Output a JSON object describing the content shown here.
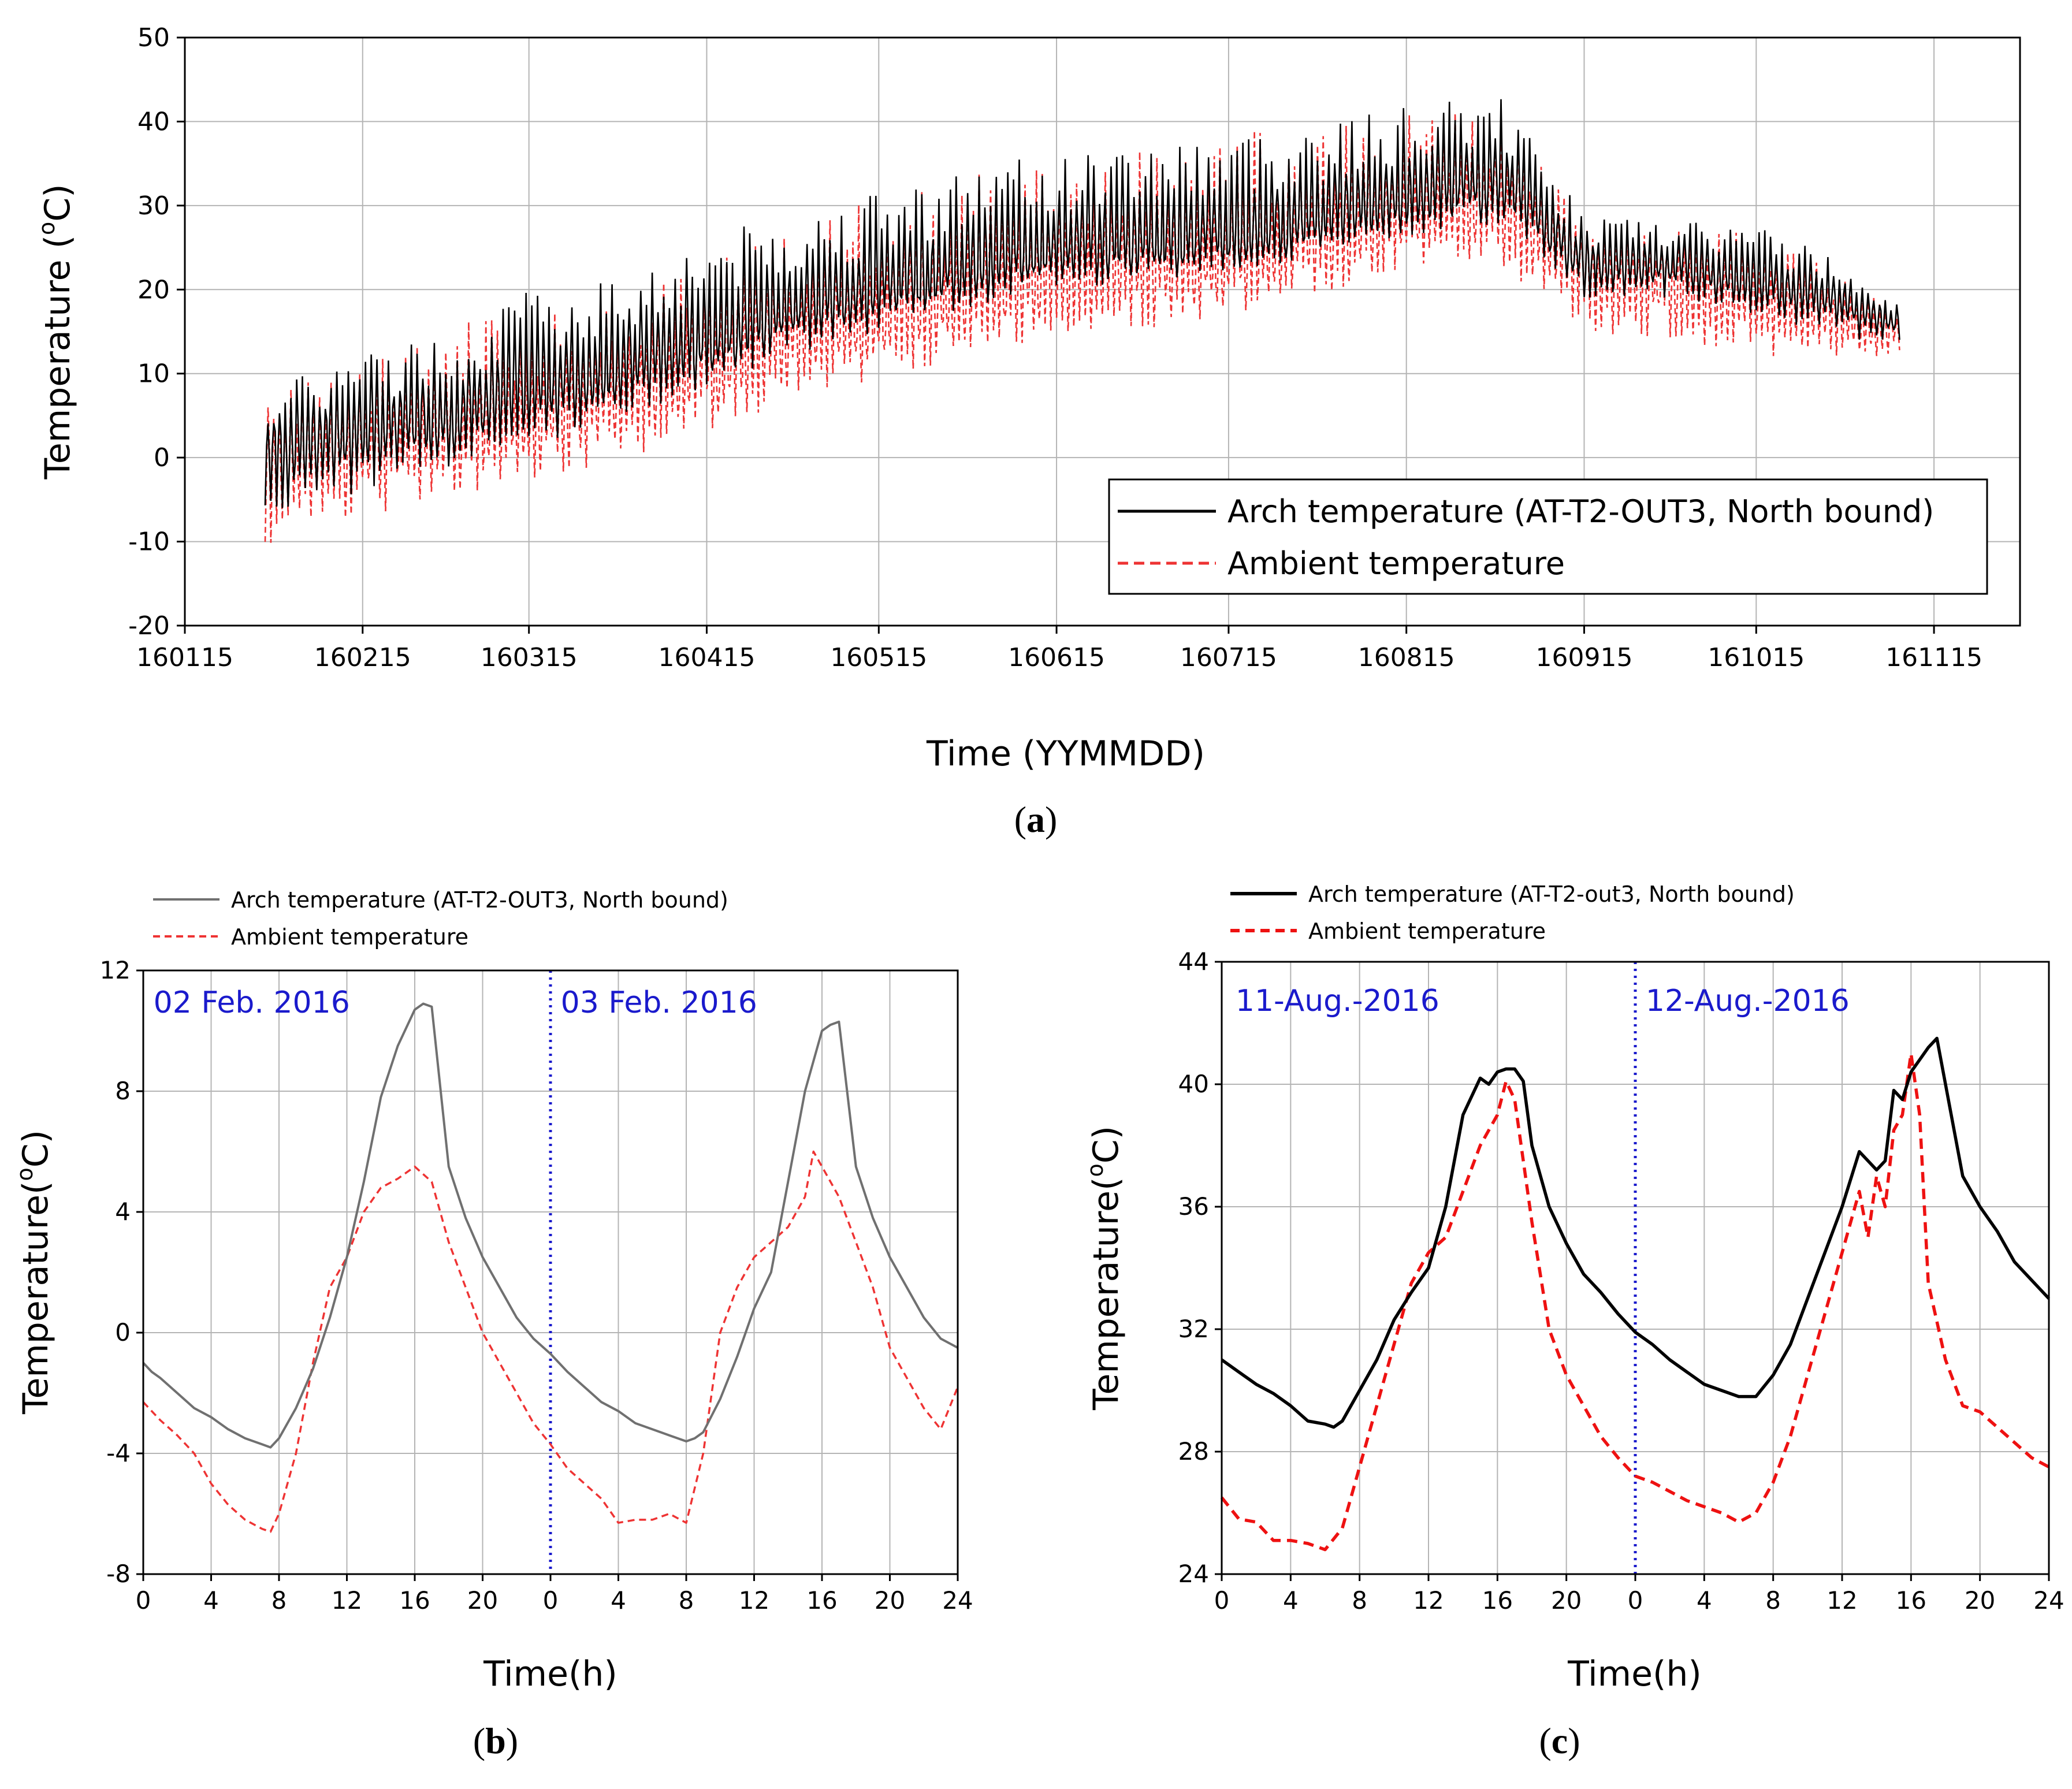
{
  "chart_data": [
    {
      "id": "a",
      "type": "line",
      "panel_label": "a",
      "xlabel": "Time (YYMMDD)",
      "ylabel": "Temperature (°C)",
      "ylabel_parts": [
        "Temperature (",
        "o",
        "C)"
      ],
      "xlim": [
        160115,
        161130
      ],
      "ylim": [
        -20,
        50
      ],
      "x_ticks": [
        "160115",
        "160215",
        "160315",
        "160415",
        "160515",
        "160615",
        "160715",
        "160815",
        "160915",
        "161015",
        "161115"
      ],
      "y_ticks": [
        -20,
        -10,
        0,
        10,
        20,
        30,
        40,
        50
      ],
      "grid": true,
      "legend_position": "bottom-right",
      "series": [
        {
          "name": "Arch temperature (AT-T2-OUT3, North bound)",
          "color": "#000000",
          "style": "solid",
          "x": [
            "160129",
            "160215",
            "160301",
            "160315",
            "160401",
            "160415",
            "160501",
            "160515",
            "160601",
            "160615",
            "160701",
            "160715",
            "160801",
            "160815",
            "160901",
            "160915",
            "161001",
            "161015",
            "161101",
            "161109"
          ],
          "y": [
            1,
            3,
            5,
            8,
            11,
            14,
            18,
            20,
            23,
            25,
            26,
            26,
            29,
            31,
            33,
            23,
            23,
            21,
            18,
            16
          ],
          "daily_swing_max": [
            8,
            13,
            15,
            20,
            22,
            27,
            29,
            32,
            35,
            36,
            38,
            39,
            40,
            42,
            43,
            29,
            28,
            28,
            23,
            18
          ],
          "daily_swing_min": [
            -9,
            -4,
            -2,
            1,
            5,
            8,
            12,
            15,
            18,
            20,
            21,
            22,
            24,
            26,
            28,
            19,
            19,
            17,
            14,
            14
          ]
        },
        {
          "name": "Ambient temperature",
          "color": "#ee3333",
          "style": "dashed",
          "x": [
            "160129",
            "160215",
            "160301",
            "160315",
            "160401",
            "160415",
            "160501",
            "160515",
            "160601",
            "160615",
            "160701",
            "160715",
            "160801",
            "160815",
            "160901",
            "160915",
            "161001",
            "161015",
            "161101",
            "161109"
          ],
          "y": [
            -1,
            1,
            3,
            5,
            8,
            11,
            15,
            17,
            20,
            22,
            23,
            24,
            27,
            29,
            31,
            22,
            21,
            19,
            16,
            15
          ],
          "daily_swing_max": [
            7,
            12,
            16,
            17,
            18,
            24,
            28,
            31,
            34,
            35,
            37,
            39,
            39,
            41,
            41,
            28,
            27,
            27,
            21,
            17
          ],
          "daily_swing_min": [
            -12,
            -7,
            -5,
            -3,
            0,
            3,
            7,
            9,
            12,
            14,
            15,
            17,
            19,
            21,
            22,
            15,
            13,
            12,
            11,
            12
          ]
        }
      ]
    },
    {
      "id": "b",
      "type": "line",
      "panel_label": "b",
      "xlabel": "Time(h)",
      "ylabel": "Temperature(°C)",
      "ylabel_parts": [
        "Temperature(",
        "o",
        "C)"
      ],
      "xlim": [
        0,
        48
      ],
      "ylim": [
        -8,
        12
      ],
      "x_tick_values": [
        0,
        4,
        8,
        12,
        16,
        20,
        24,
        28,
        32,
        36,
        40,
        44,
        48
      ],
      "x_ticks": [
        "0",
        "4",
        "8",
        "12",
        "16",
        "20",
        "0",
        "4",
        "8",
        "12",
        "16",
        "20",
        "24"
      ],
      "y_ticks": [
        -8,
        -4,
        0,
        4,
        8,
        12
      ],
      "grid": true,
      "divider_x": 24,
      "divider_color": "#1a1acc",
      "legend_position": "top-left, above plot",
      "annotations": [
        {
          "text": "02 Feb. 2016",
          "x": 0.6,
          "y": 10.6
        },
        {
          "text": "03 Feb. 2016",
          "x": 24.6,
          "y": 10.6
        }
      ],
      "series": [
        {
          "name": "Arch temperature (AT-T2-OUT3, North bound)",
          "color": "#707070",
          "style": "solid",
          "x": [
            0,
            0.5,
            1,
            2,
            3,
            4,
            5,
            6,
            7,
            7.5,
            8,
            9,
            10,
            11,
            12,
            13,
            14,
            15,
            16,
            16.5,
            17,
            18,
            19,
            20,
            21,
            22,
            23,
            24,
            25,
            26,
            27,
            28,
            29,
            30,
            31,
            32,
            32.5,
            33,
            34,
            35,
            36,
            37,
            38,
            39,
            40,
            40.5,
            41,
            42,
            43,
            44,
            45,
            46,
            47,
            48
          ],
          "y": [
            -1,
            -1.3,
            -1.5,
            -2,
            -2.5,
            -2.8,
            -3.2,
            -3.5,
            -3.7,
            -3.8,
            -3.5,
            -2.5,
            -1.2,
            0.5,
            2.5,
            5,
            7.8,
            9.5,
            10.7,
            10.9,
            10.8,
            5.5,
            3.8,
            2.5,
            1.5,
            0.5,
            -0.2,
            -0.7,
            -1.3,
            -1.8,
            -2.3,
            -2.6,
            -3,
            -3.2,
            -3.4,
            -3.6,
            -3.5,
            -3.3,
            -2.2,
            -0.8,
            0.8,
            2,
            5,
            8,
            10,
            10.2,
            10.3,
            5.5,
            3.8,
            2.5,
            1.5,
            0.5,
            -0.2,
            -0.5
          ]
        },
        {
          "name": "Ambient temperature",
          "color": "#ee3333",
          "style": "dashed",
          "x": [
            0,
            1,
            2,
            3,
            4,
            5,
            6,
            7,
            7.5,
            8,
            9,
            10,
            11,
            12,
            13,
            14,
            15,
            16,
            17,
            18,
            19,
            20,
            21,
            22,
            23,
            24,
            25,
            26,
            27,
            28,
            29,
            30,
            31,
            32,
            33,
            34,
            35,
            36,
            37,
            38,
            39,
            39.5,
            40,
            41,
            42,
            43,
            44,
            45,
            46,
            47,
            48
          ],
          "y": [
            -2.3,
            -2.9,
            -3.4,
            -4,
            -5,
            -5.7,
            -6.2,
            -6.5,
            -6.6,
            -6,
            -4,
            -1,
            1.5,
            2.5,
            4,
            4.8,
            5.1,
            5.5,
            5,
            3,
            1.5,
            0,
            -1,
            -2,
            -3,
            -3.7,
            -4.5,
            -5,
            -5.5,
            -6.3,
            -6.2,
            -6.2,
            -6,
            -6.3,
            -4,
            0,
            1.5,
            2.5,
            3,
            3.5,
            4.5,
            6,
            5.5,
            4.5,
            3,
            1.5,
            -0.5,
            -1.5,
            -2.5,
            -3.2,
            -1.8
          ]
        }
      ]
    },
    {
      "id": "c",
      "type": "line",
      "panel_label": "c",
      "xlabel": "Time(h)",
      "ylabel": "Temperature(°C)",
      "ylabel_parts": [
        "Temperature(",
        "o",
        "C)"
      ],
      "xlim": [
        0,
        48
      ],
      "ylim": [
        24,
        44
      ],
      "x_tick_values": [
        0,
        4,
        8,
        12,
        16,
        20,
        24,
        28,
        32,
        36,
        40,
        44,
        48
      ],
      "x_ticks": [
        "0",
        "4",
        "8",
        "12",
        "16",
        "20",
        "0",
        "4",
        "8",
        "12",
        "16",
        "20",
        "24"
      ],
      "y_ticks": [
        24,
        28,
        32,
        36,
        40,
        44
      ],
      "grid": true,
      "divider_x": 24,
      "divider_color": "#1a1acc",
      "legend_position": "top-left, above plot",
      "annotations": [
        {
          "text": "11-Aug.-2016",
          "x": 0.8,
          "y": 42.4
        },
        {
          "text": "12-Aug.-2016",
          "x": 24.6,
          "y": 42.4
        }
      ],
      "series": [
        {
          "name": "Arch temperature (AT-T2-out3, North bound)",
          "color": "#000000",
          "style": "solid",
          "x": [
            0,
            1,
            2,
            3,
            4,
            5,
            6,
            6.5,
            7,
            8,
            9,
            10,
            11,
            12,
            13,
            14,
            15,
            15.5,
            16,
            16.5,
            17,
            17.5,
            18,
            19,
            20,
            21,
            22,
            23,
            24,
            25,
            26,
            27,
            28,
            29,
            30,
            31,
            32,
            33,
            34,
            35,
            36,
            37,
            37.5,
            38,
            38.5,
            39,
            39.5,
            40,
            41,
            41.5,
            42,
            43,
            44,
            45,
            46,
            47,
            48
          ],
          "y": [
            31,
            30.6,
            30.2,
            29.9,
            29.5,
            29,
            28.9,
            28.8,
            29,
            30,
            31,
            32.3,
            33.2,
            34,
            36,
            39,
            40.2,
            40,
            40.4,
            40.5,
            40.5,
            40.1,
            38,
            36,
            34.8,
            33.8,
            33.2,
            32.5,
            31.9,
            31.5,
            31,
            30.6,
            30.2,
            30,
            29.8,
            29.8,
            30.5,
            31.5,
            33,
            34.5,
            36,
            37.8,
            37.5,
            37.2,
            37.5,
            39.8,
            39.5,
            40.4,
            41.2,
            41.5,
            40,
            37,
            36,
            35.2,
            34.2,
            33.6,
            33
          ]
        },
        {
          "name": "Ambient temperature",
          "color": "#ee1111",
          "style": "dashed",
          "x": [
            0,
            1,
            2,
            3,
            4,
            5,
            6,
            7,
            8,
            9,
            10,
            11,
            12,
            13,
            14,
            15,
            16,
            16.5,
            17,
            18,
            19,
            20,
            21,
            22,
            23,
            24,
            25,
            26,
            27,
            28,
            29,
            30,
            31,
            32,
            33,
            34,
            35,
            36,
            36.5,
            37,
            37.5,
            38,
            38.5,
            39,
            39.5,
            40,
            40.5,
            41,
            42,
            43,
            44,
            45,
            46,
            47,
            48
          ],
          "y": [
            26.5,
            25.8,
            25.7,
            25.1,
            25.1,
            25,
            24.8,
            25.5,
            27.5,
            29.5,
            31.5,
            33.5,
            34.5,
            35,
            36.5,
            38,
            39,
            40.1,
            39.5,
            35.5,
            32,
            30.5,
            29.5,
            28.5,
            27.8,
            27.2,
            27,
            26.7,
            26.4,
            26.2,
            26,
            25.7,
            26,
            27,
            28.5,
            30.5,
            32.5,
            34.5,
            35.5,
            36.5,
            35,
            37,
            36,
            38.5,
            39,
            41,
            39,
            33.5,
            31,
            29.5,
            29.3,
            28.8,
            28.3,
            27.8,
            27.5
          ]
        }
      ]
    }
  ]
}
